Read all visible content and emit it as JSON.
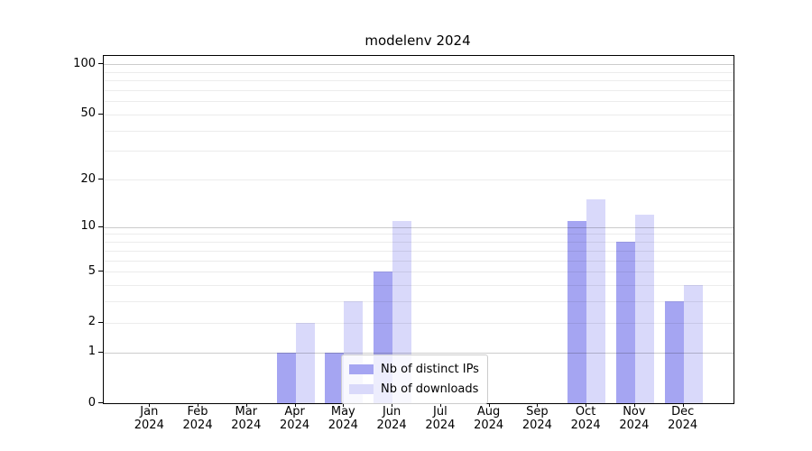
{
  "chart_data": {
    "type": "bar",
    "title": "modelenv 2024",
    "yscale": "log1p",
    "ylim": [
      0,
      112
    ],
    "grid": true,
    "legend_position": "lower center-right inside plot",
    "categories": [
      {
        "month": "Jan",
        "year": "2024"
      },
      {
        "month": "Feb",
        "year": "2024"
      },
      {
        "month": "Mar",
        "year": "2024"
      },
      {
        "month": "Apr",
        "year": "2024"
      },
      {
        "month": "May",
        "year": "2024"
      },
      {
        "month": "Jun",
        "year": "2024"
      },
      {
        "month": "Jul",
        "year": "2024"
      },
      {
        "month": "Aug",
        "year": "2024"
      },
      {
        "month": "Sep",
        "year": "2024"
      },
      {
        "month": "Oct",
        "year": "2024"
      },
      {
        "month": "Nov",
        "year": "2024"
      },
      {
        "month": "Dec",
        "year": "2024"
      }
    ],
    "series": [
      {
        "name": "Nb of distinct IPs",
        "color": "#a5a5f2",
        "values": [
          0,
          0,
          0,
          1,
          1,
          5,
          0,
          0,
          0,
          11,
          8,
          3
        ]
      },
      {
        "name": "Nb of downloads",
        "color": "#d9d9fa",
        "values": [
          0,
          0,
          0,
          2,
          3,
          11,
          0,
          0,
          0,
          15,
          12,
          4
        ]
      }
    ],
    "ytick_values": [
      0,
      1,
      2,
      5,
      10,
      20,
      50,
      100
    ],
    "major_gridline_values": [
      1,
      10,
      100
    ],
    "minor_gridline_values": [
      2,
      3,
      4,
      5,
      6,
      7,
      8,
      9,
      20,
      30,
      40,
      50,
      60,
      70,
      80,
      90
    ]
  }
}
